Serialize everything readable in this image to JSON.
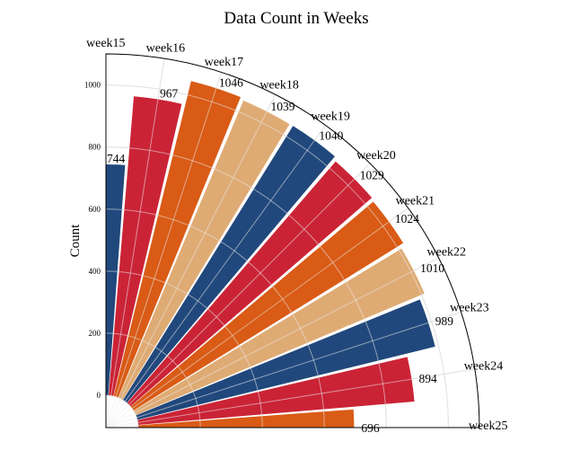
{
  "chart_data": {
    "type": "bar",
    "subtype": "polar-radial-bar",
    "title": "Data Count in Weeks",
    "ylabel": "Count",
    "xlabel": "",
    "categories": [
      "week15",
      "week16",
      "week17",
      "week18",
      "week19",
      "week20",
      "week21",
      "week22",
      "week23",
      "week24",
      "week25"
    ],
    "values": [
      744,
      967,
      1046,
      1039,
      1040,
      1029,
      1024,
      1010,
      989,
      894,
      696
    ],
    "value_labels": [
      "744",
      "967",
      "1046",
      "1039",
      "1040",
      "1029",
      "1024",
      "1010",
      "989",
      "894",
      "696"
    ],
    "radial_range": [
      -100,
      1100
    ],
    "radial_ticks": [
      0,
      200,
      400,
      600,
      800,
      1000
    ],
    "radial_tick_labels": [
      "0",
      "200",
      "400",
      "600",
      "800",
      "1000"
    ],
    "angular_span_degrees": [
      90,
      0
    ],
    "grid": true,
    "colors": [
      "#21487c",
      "#cb2336",
      "#d95b16",
      "#dfab74",
      "#21487c",
      "#cb2336",
      "#d95b16",
      "#dfab74",
      "#21487c",
      "#cb2336",
      "#d95b16"
    ]
  }
}
